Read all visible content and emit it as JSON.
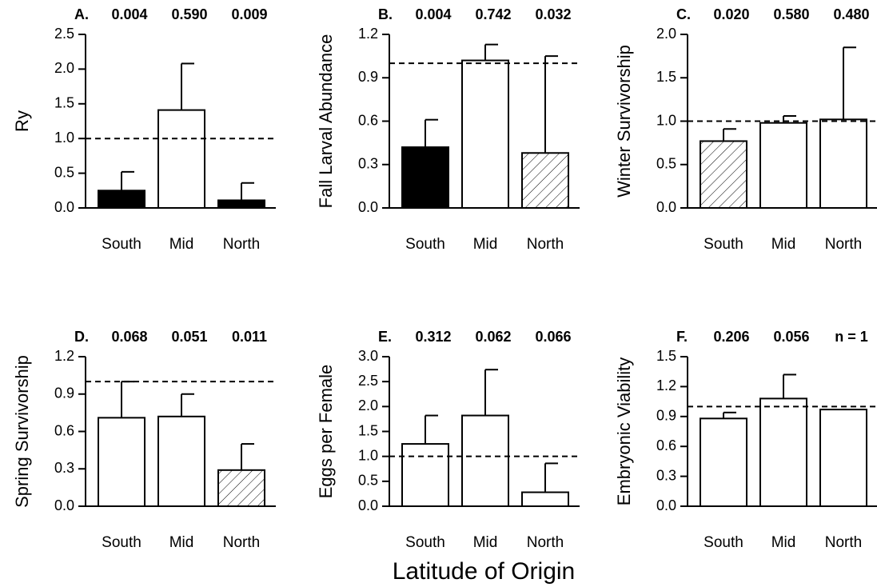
{
  "chart_data": [
    {
      "type": "bar",
      "panel_label": "A.",
      "ylabel": "Ry",
      "categories": [
        "South",
        "Mid",
        "North"
      ],
      "values": [
        0.25,
        1.41,
        0.11
      ],
      "errors": [
        0.27,
        0.67,
        0.25
      ],
      "fills": [
        "#000000",
        "#ffffff",
        "#000000"
      ],
      "annotations": [
        "0.004",
        "0.590",
        "0.009"
      ],
      "reference_line": 1,
      "ylim": [
        0,
        2.5
      ],
      "yticks": [
        {
          "value": 0,
          "label": "0.0"
        },
        0.5,
        {
          "value": 1,
          "label": "1.0"
        },
        1.5,
        {
          "value": 2,
          "label": "2.0"
        },
        2.5
      ]
    },
    {
      "type": "bar",
      "panel_label": "B.",
      "ylabel": "Fall Larval Abundance",
      "categories": [
        "South",
        "Mid",
        "North"
      ],
      "values": [
        0.42,
        1.02,
        0.38
      ],
      "errors": [
        0.19,
        0.11,
        0.67
      ],
      "fills": [
        "#000000",
        "#ffffff",
        "hatch"
      ],
      "annotations": [
        "0.004",
        "0.742",
        "0.032"
      ],
      "reference_line": 1,
      "ylim": [
        0,
        1.2
      ],
      "yticks": [
        {
          "value": 0,
          "label": "0.0"
        },
        0.3,
        0.6,
        0.9,
        1.2
      ]
    },
    {
      "type": "bar",
      "panel_label": "C.",
      "ylabel": "Winter Survivorship",
      "categories": [
        "South",
        "Mid",
        "North"
      ],
      "values": [
        0.77,
        0.98,
        1.02
      ],
      "errors": [
        0.14,
        0.08,
        0.83
      ],
      "fills": [
        "hatch",
        "#ffffff",
        "#ffffff"
      ],
      "annotations": [
        "0.020",
        "0.580",
        "0.480"
      ],
      "reference_line": 1,
      "ylim": [
        0,
        2
      ],
      "yticks": [
        {
          "value": 0,
          "label": "0.0"
        },
        0.5,
        {
          "value": 1,
          "label": "1.0"
        },
        1.5,
        {
          "value": 2,
          "label": "2.0"
        }
      ]
    },
    {
      "type": "bar",
      "panel_label": "D.",
      "ylabel": "Spring Survivorship",
      "categories": [
        "South",
        "Mid",
        "North"
      ],
      "values": [
        0.71,
        0.72,
        0.29
      ],
      "errors": [
        0.29,
        0.18,
        0.21
      ],
      "fills": [
        "#ffffff",
        "#ffffff",
        "hatch"
      ],
      "annotations": [
        "0.068",
        "0.051",
        "0.011"
      ],
      "reference_line": 1,
      "ylim": [
        0,
        1.2
      ],
      "yticks": [
        {
          "value": 0,
          "label": "0.0"
        },
        0.3,
        0.6,
        0.9,
        1.2
      ]
    },
    {
      "type": "bar",
      "panel_label": "E.",
      "ylabel": "Eggs per Female",
      "categories": [
        "South",
        "Mid",
        "North"
      ],
      "values": [
        1.25,
        1.82,
        0.28
      ],
      "errors": [
        0.57,
        0.92,
        0.58
      ],
      "fills": [
        "#ffffff",
        "#ffffff",
        "#ffffff"
      ],
      "annotations": [
        "0.312",
        "0.062",
        "0.066"
      ],
      "reference_line": 1,
      "ylim": [
        0,
        3
      ],
      "yticks": [
        {
          "value": 0,
          "label": "0.0"
        },
        0.5,
        {
          "value": 1,
          "label": "1.0"
        },
        1.5,
        {
          "value": 2,
          "label": "2.0"
        },
        2.5,
        {
          "value": 3,
          "label": "3.0"
        }
      ]
    },
    {
      "type": "bar",
      "panel_label": "F.",
      "ylabel": "Embryonic Viability",
      "categories": [
        "South",
        "Mid",
        "North"
      ],
      "values": [
        0.88,
        1.08,
        0.97
      ],
      "errors": [
        0.06,
        0.24,
        null
      ],
      "fills": [
        "#ffffff",
        "#ffffff",
        "#ffffff"
      ],
      "annotations": [
        "0.206",
        "0.056",
        "n = 1"
      ],
      "reference_line": 1,
      "ylim": [
        0,
        1.5
      ],
      "yticks": [
        {
          "value": 0,
          "label": "0.0"
        },
        0.3,
        0.6,
        0.9,
        1.2,
        1.5
      ]
    }
  ],
  "shared_xlabel": "Latitude of Origin"
}
